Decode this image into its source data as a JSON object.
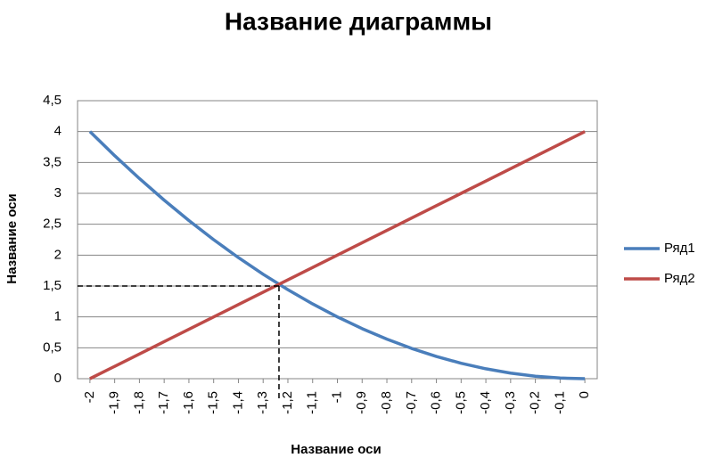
{
  "chart_data": {
    "type": "line",
    "title": "Название диаграммы",
    "x_label": "Название оси",
    "y_label": "Название оси",
    "x": [
      -2,
      -1.9,
      -1.8,
      -1.7,
      -1.6,
      -1.5,
      -1.4,
      -1.3,
      -1.2,
      -1.1,
      -1,
      -0.9,
      -0.8,
      -0.7,
      -0.6,
      -0.5,
      -0.4,
      -0.3,
      -0.2,
      -0.1,
      0
    ],
    "xlim": [
      -2.05,
      0.05
    ],
    "xticks": [
      -2,
      {
        "value": -1.9,
        "label": "-1,9"
      },
      {
        "value": -1.8,
        "label": "-1,8"
      },
      {
        "value": -1.7,
        "label": "-1,7"
      },
      {
        "value": -1.6,
        "label": "-1,6"
      },
      {
        "value": -1.5,
        "label": "-1,5"
      },
      {
        "value": -1.4,
        "label": "-1,4"
      },
      {
        "value": -1.3,
        "label": "-1,3"
      },
      {
        "value": -1.2,
        "label": "-1,2"
      },
      {
        "value": -1.1,
        "label": "-1,1"
      },
      -1,
      {
        "value": -0.9,
        "label": "-0,9"
      },
      {
        "value": -0.8,
        "label": "-0,8"
      },
      {
        "value": -0.7,
        "label": "-0,7"
      },
      {
        "value": -0.6,
        "label": "-0,6"
      },
      {
        "value": -0.5,
        "label": "-0,5"
      },
      {
        "value": -0.4,
        "label": "-0,4"
      },
      {
        "value": -0.3,
        "label": "-0,3"
      },
      {
        "value": -0.2,
        "label": "-0,2"
      },
      {
        "value": -0.1,
        "label": "-0,1"
      },
      0
    ],
    "ylim": [
      0,
      4.5
    ],
    "yticks": [
      0,
      {
        "value": 0.5,
        "label": "0,5"
      },
      1,
      {
        "value": 1.5,
        "label": "1,5"
      },
      2,
      {
        "value": 2.5,
        "label": "2,5"
      },
      3,
      {
        "value": 3.5,
        "label": "3,5"
      },
      4,
      {
        "value": 4.5,
        "label": "4,5"
      }
    ],
    "grid": true,
    "legend": "right",
    "series": [
      {
        "name": "Ряд1",
        "color": "#4a7ebb",
        "values": [
          4,
          3.61,
          3.24,
          2.89,
          2.56,
          2.25,
          1.96,
          1.69,
          1.44,
          1.21,
          1,
          0.81,
          0.64,
          0.49,
          0.36,
          0.25,
          0.16,
          0.09,
          0.04,
          0.01,
          0
        ]
      },
      {
        "name": "Ряд2",
        "color": "#be4b48",
        "values": [
          0,
          0.2,
          0.4,
          0.6,
          0.8,
          1,
          1.2,
          1.4,
          1.6,
          1.8,
          2,
          2.2,
          2.4,
          2.6,
          2.8,
          3,
          3.2,
          3.4,
          3.6,
          3.8,
          4
        ]
      }
    ],
    "guide": {
      "x": -1.236,
      "y": 1.5
    }
  }
}
